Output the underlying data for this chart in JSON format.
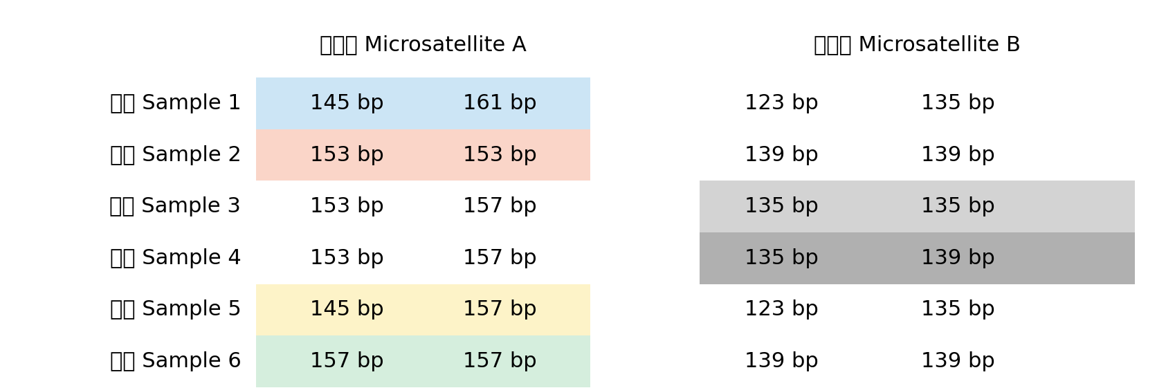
{
  "headers": [
    "微衛星 Microsatellite A",
    "微衛星 Microsatellite B"
  ],
  "row_labels": [
    "樣本 Sample 1",
    "樣本 Sample 2",
    "樣本 Sample 3",
    "樣本 Sample 4",
    "樣本 Sample 5",
    "樣本 Sample 6"
  ],
  "micro_A": [
    [
      "145 bp",
      "161 bp"
    ],
    [
      "153 bp",
      "153 bp"
    ],
    [
      "153 bp",
      "157 bp"
    ],
    [
      "153 bp",
      "157 bp"
    ],
    [
      "145 bp",
      "157 bp"
    ],
    [
      "157 bp",
      "157 bp"
    ]
  ],
  "micro_B": [
    [
      "123 bp",
      "135 bp"
    ],
    [
      "139 bp",
      "139 bp"
    ],
    [
      "135 bp",
      "135 bp"
    ],
    [
      "135 bp",
      "139 bp"
    ],
    [
      "123 bp",
      "135 bp"
    ],
    [
      "139 bp",
      "139 bp"
    ]
  ],
  "row_bg_A": [
    "#cce5f5",
    "#fad5c8",
    "#ffffff",
    "#ffffff",
    "#fdf3c8",
    "#d5eedd"
  ],
  "row_bg_B": [
    "#ffffff",
    "#ffffff",
    "#d3d3d3",
    "#b0b0b0",
    "#ffffff",
    "#ffffff"
  ],
  "bg_color": "#ffffff",
  "header_fontsize": 22,
  "cell_fontsize": 22,
  "row_label_fontsize": 22,
  "fig_width": 16.99,
  "fig_height": 5.61
}
